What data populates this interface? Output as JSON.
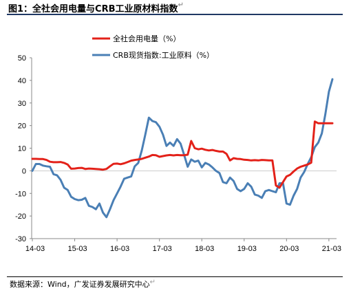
{
  "page": {
    "title": "图1：全社会用电量与CRB工业原材料指数",
    "source": "数据来源：Wind，广发证券发展研究中心",
    "return_mark": "↵"
  },
  "chart_data": {
    "type": "line",
    "title": "",
    "xlabel": "",
    "ylabel": "",
    "ylim": [
      -30,
      50
    ],
    "yticks": [
      -30,
      -20,
      -10,
      0,
      10,
      20,
      30,
      40,
      50
    ],
    "xlim": [
      0,
      86
    ],
    "xticks": [
      {
        "label": "14-03",
        "x": 0
      },
      {
        "label": "15-03",
        "x": 12
      },
      {
        "label": "16-03",
        "x": 24
      },
      {
        "label": "17-03",
        "x": 36
      },
      {
        "label": "18-03",
        "x": 48
      },
      {
        "label": "19-03",
        "x": 60
      },
      {
        "label": "20-03",
        "x": 72
      },
      {
        "label": "21-03",
        "x": 84
      }
    ],
    "grid": false,
    "legend_position": "top-center",
    "series": [
      {
        "name": "全社会用电量（%）",
        "color": "#e32119",
        "x": [
          0,
          1,
          2,
          3,
          4,
          5,
          6,
          7,
          8,
          9,
          10,
          11,
          12,
          13,
          14,
          15,
          16,
          17,
          18,
          19,
          20,
          21,
          22,
          23,
          24,
          25,
          26,
          27,
          28,
          29,
          30,
          31,
          32,
          33,
          34,
          35,
          36,
          37,
          38,
          39,
          40,
          41,
          42,
          43,
          44,
          45,
          46,
          47,
          48,
          49,
          50,
          51,
          52,
          53,
          54,
          55,
          56,
          57,
          58,
          59,
          60,
          61,
          62,
          63,
          64,
          65,
          66,
          67,
          68,
          69,
          70,
          71,
          72,
          73,
          74,
          75,
          76,
          77,
          78,
          79,
          80,
          81,
          82,
          83,
          84,
          85
        ],
        "values": [
          5.3,
          5.3,
          5.2,
          5.2,
          4.8,
          4.0,
          3.8,
          3.8,
          3.9,
          3.5,
          2.8,
          0.9,
          1.0,
          1.2,
          1.3,
          0.8,
          1.0,
          0.9,
          0.8,
          0.7,
          0.5,
          0.8,
          2.0,
          3.1,
          3.2,
          2.9,
          3.3,
          3.9,
          4.5,
          4.8,
          5.0,
          5.3,
          5.8,
          6.3,
          7.0,
          6.9,
          6.2,
          6.5,
          6.8,
          7.0,
          6.8,
          7.0,
          6.9,
          6.9,
          7.1,
          13.2,
          10.0,
          9.5,
          9.8,
          9.3,
          9.0,
          9.2,
          8.8,
          8.5,
          8.5,
          7.5,
          4.6,
          5.6,
          5.3,
          5.2,
          4.9,
          4.8,
          4.6,
          4.7,
          4.6,
          4.8,
          4.7,
          4.6,
          4.6,
          -6.5,
          -7.5,
          -5.0,
          -2.5,
          -1.8,
          -0.3,
          1.0,
          1.8,
          2.3,
          2.8,
          3.6,
          21.8,
          21.0,
          21.0,
          21.0,
          21.0,
          21.0
        ]
      },
      {
        "name": "CRB现货指数:工业原料（%）",
        "color": "#4a7fb5",
        "x": [
          0,
          1,
          2,
          3,
          4,
          5,
          6,
          7,
          8,
          9,
          10,
          11,
          12,
          13,
          14,
          15,
          16,
          17,
          18,
          19,
          20,
          21,
          22,
          23,
          24,
          25,
          26,
          27,
          28,
          29,
          30,
          31,
          32,
          33,
          34,
          35,
          36,
          37,
          38,
          39,
          40,
          41,
          42,
          43,
          44,
          45,
          46,
          47,
          48,
          49,
          50,
          51,
          52,
          53,
          54,
          55,
          56,
          57,
          58,
          59,
          60,
          61,
          62,
          63,
          64,
          65,
          66,
          67,
          68,
          69,
          70,
          71,
          72,
          73,
          74,
          75,
          76,
          77,
          78,
          79,
          80,
          81,
          82,
          83,
          84,
          85
        ],
        "values": [
          0.0,
          3.0,
          3.0,
          2.3,
          2.0,
          1.8,
          -1.5,
          -2.0,
          -4.0,
          -7.5,
          -8.5,
          -11.5,
          -12.5,
          -13.0,
          -12.8,
          -12.0,
          -15.5,
          -16.0,
          -17.0,
          -14.5,
          -18.5,
          -20.5,
          -17.0,
          -13.0,
          -10.0,
          -7.0,
          -3.5,
          -3.0,
          -2.5,
          2.0,
          3.5,
          9.0,
          16.0,
          23.5,
          22.0,
          21.5,
          19.5,
          16.0,
          11.0,
          12.5,
          11.0,
          14.0,
          12.0,
          7.0,
          1.8,
          5.0,
          4.0,
          4.5,
          1.5,
          3.5,
          2.8,
          1.5,
          0.0,
          -1.0,
          -5.0,
          -5.5,
          -3.0,
          -4.5,
          -8.0,
          -9.0,
          -8.0,
          -5.5,
          -7.0,
          -10.5,
          -11.0,
          -12.0,
          -9.0,
          -8.5,
          -9.0,
          -9.5,
          -5.5,
          -5.5,
          -14.5,
          -15.0,
          -11.0,
          -8.0,
          -3.0,
          -0.5,
          3.0,
          6.0,
          10.5,
          12.5,
          16.5,
          25.0,
          35.0,
          40.5
        ]
      }
    ]
  }
}
